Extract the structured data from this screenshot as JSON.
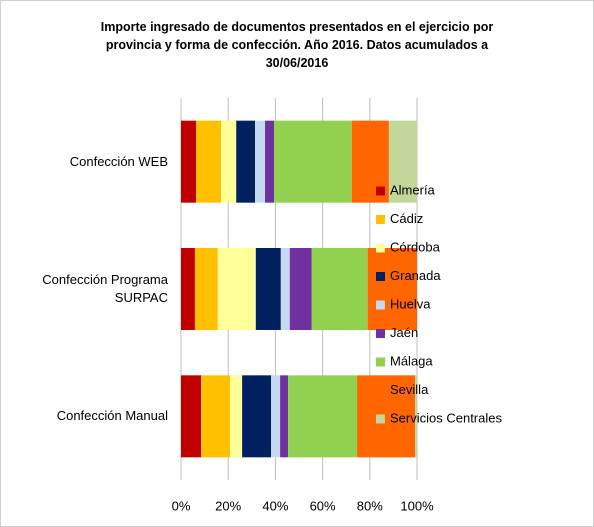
{
  "chart_data": {
    "type": "stacked_barh",
    "title": "Importe ingresado de documentos presentados en el ejercicio por provincia y forma de confección. Año 2016. Datos acumulados a 30/06/2016",
    "categories": [
      "Confección WEB",
      "Confección Programa SURPAC",
      "Confección Manual"
    ],
    "series": [
      {
        "name": "Almería",
        "color": "#c00000",
        "values": [
          6.4,
          5.9,
          8.5
        ]
      },
      {
        "name": "Cádiz",
        "color": "#ffc000",
        "values": [
          10.6,
          9.7,
          12.3
        ]
      },
      {
        "name": "Córdoba",
        "color": "#ffff99",
        "values": [
          6.4,
          16.1,
          5.1
        ]
      },
      {
        "name": "Granada",
        "color": "#002060",
        "values": [
          8,
          10.6,
          12.3
        ]
      },
      {
        "name": "Huelva",
        "color": "#c5d9f1",
        "values": [
          4.2,
          3.8,
          3.8
        ]
      },
      {
        "name": "Jaén",
        "color": "#7030a0",
        "values": [
          3.8,
          9.3,
          3.4
        ]
      },
      {
        "name": "Málaga",
        "color": "#92d050",
        "values": [
          33,
          23.7,
          29.2
        ]
      },
      {
        "name": "Sevilla",
        "color": "#ff6600",
        "values": [
          15.7,
          20.9,
          24.6
        ]
      },
      {
        "name": "Servicios Centrales",
        "color": "#c4d79b",
        "values": [
          11.9,
          0,
          0.8
        ]
      }
    ],
    "xlim": [
      0,
      100
    ],
    "xticks": [
      {
        "value": 0,
        "label": "0%"
      },
      {
        "value": 20,
        "label": "20%"
      },
      {
        "value": 40,
        "label": "40%"
      },
      {
        "value": 60,
        "label": "60%"
      },
      {
        "value": 80,
        "label": "80%"
      },
      {
        "value": 100,
        "label": "100%"
      }
    ],
    "grid": true,
    "legend": "right"
  }
}
